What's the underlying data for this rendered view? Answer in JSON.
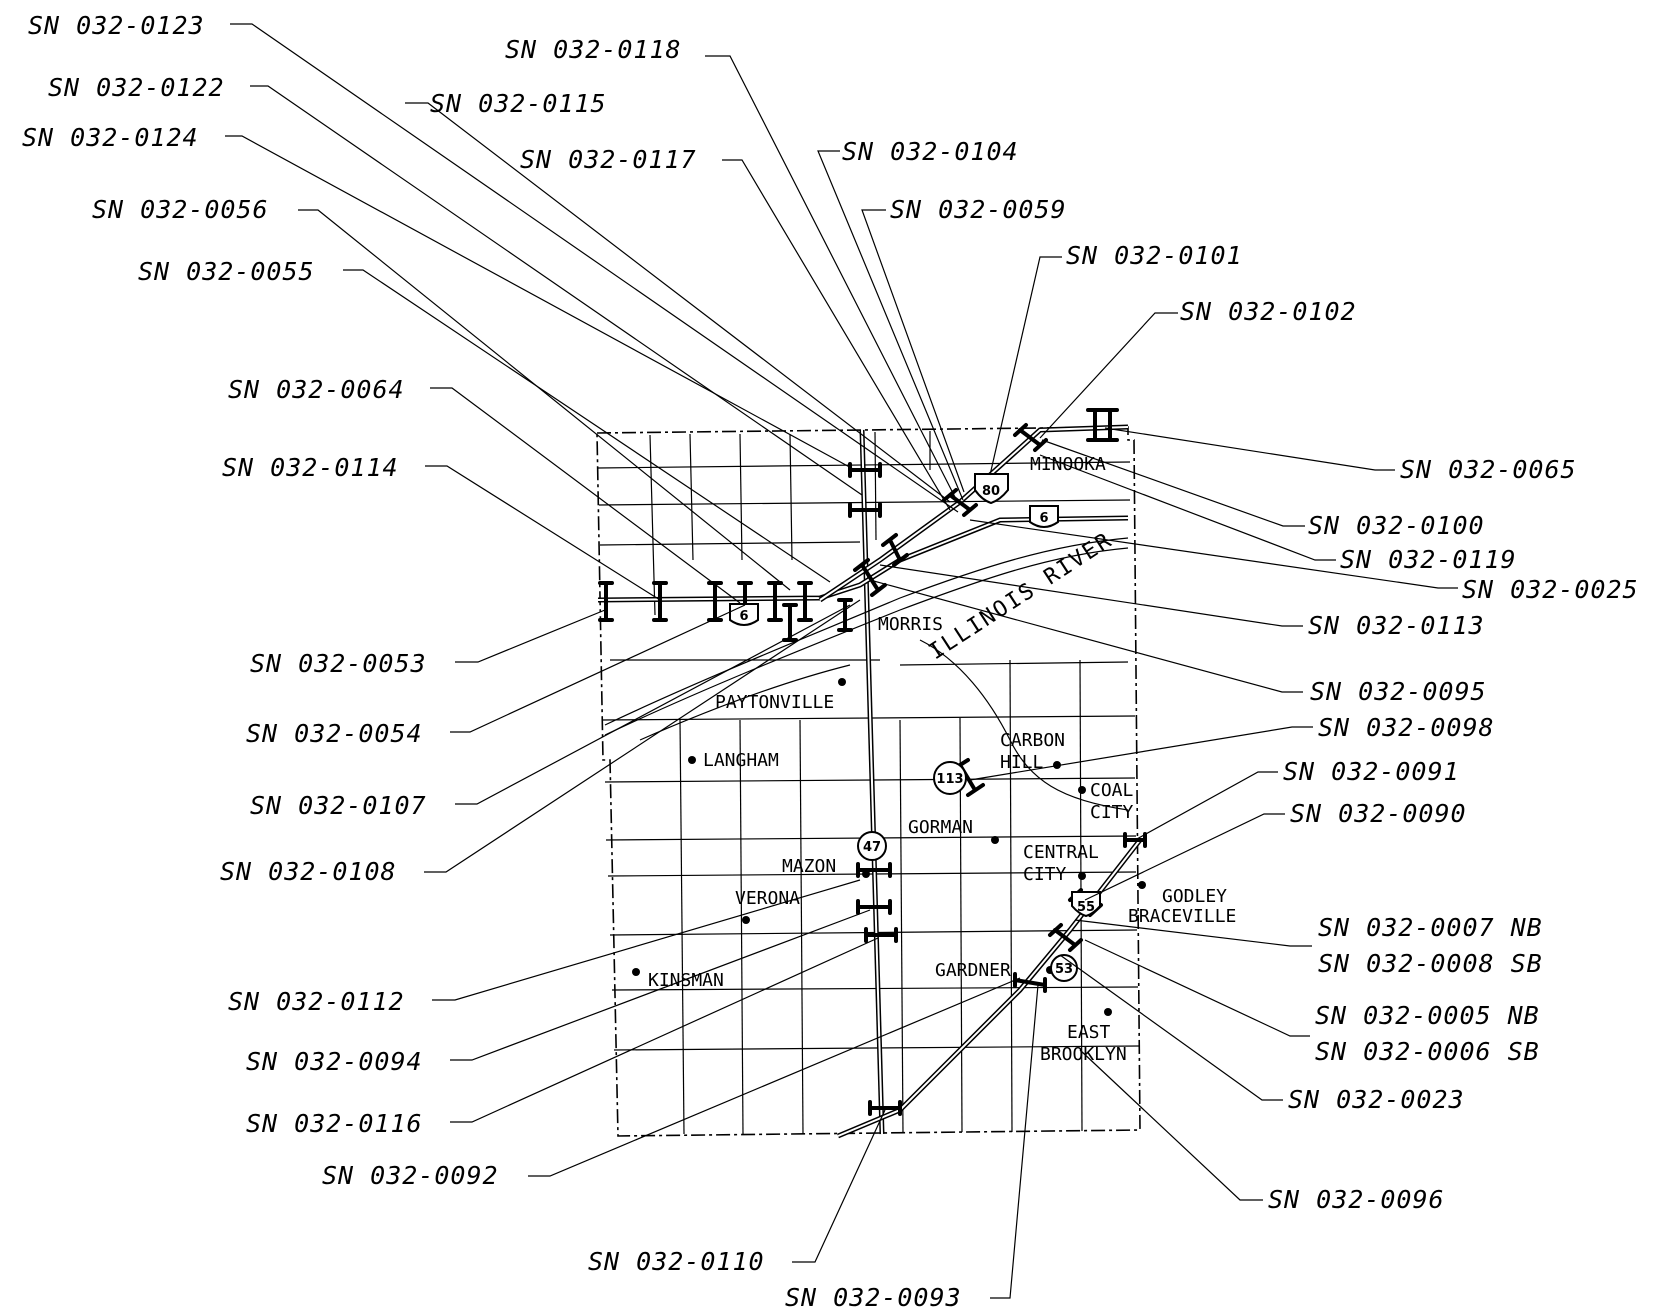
{
  "map": {
    "callouts": [
      {
        "id": "0123",
        "label": "SN 032-0123"
      },
      {
        "id": "0118",
        "label": "SN 032-0118"
      },
      {
        "id": "0122",
        "label": "SN 032-0122"
      },
      {
        "id": "0115",
        "label": "SN 032-0115"
      },
      {
        "id": "0124",
        "label": "SN 032-0124"
      },
      {
        "id": "0117",
        "label": "SN 032-0117"
      },
      {
        "id": "0104",
        "label": "SN 032-0104"
      },
      {
        "id": "0056",
        "label": "SN 032-0056"
      },
      {
        "id": "0059",
        "label": "SN 032-0059"
      },
      {
        "id": "0101",
        "label": "SN 032-0101"
      },
      {
        "id": "0055",
        "label": "SN 032-0055"
      },
      {
        "id": "0102",
        "label": "SN 032-0102"
      },
      {
        "id": "0064",
        "label": "SN 032-0064"
      },
      {
        "id": "0114",
        "label": "SN 032-0114"
      },
      {
        "id": "0065",
        "label": "SN 032-0065"
      },
      {
        "id": "0100",
        "label": "SN 032-0100"
      },
      {
        "id": "0119",
        "label": "SN 032-0119"
      },
      {
        "id": "0025",
        "label": "SN 032-0025"
      },
      {
        "id": "0113",
        "label": "SN 032-0113"
      },
      {
        "id": "0053",
        "label": "SN 032-0053"
      },
      {
        "id": "0095",
        "label": "SN 032-0095"
      },
      {
        "id": "0098",
        "label": "SN 032-0098"
      },
      {
        "id": "0054",
        "label": "SN 032-0054"
      },
      {
        "id": "0091",
        "label": "SN 032-0091"
      },
      {
        "id": "0107",
        "label": "SN 032-0107"
      },
      {
        "id": "0090",
        "label": "SN 032-0090"
      },
      {
        "id": "0108",
        "label": "SN 032-0108"
      },
      {
        "id": "0007nb",
        "label": "SN 032-0007 NB"
      },
      {
        "id": "0008sb",
        "label": "SN 032-0008 SB"
      },
      {
        "id": "0112",
        "label": "SN 032-0112"
      },
      {
        "id": "0005nb",
        "label": "SN 032-0005 NB"
      },
      {
        "id": "0006sb",
        "label": "SN 032-0006 SB"
      },
      {
        "id": "0094",
        "label": "SN 032-0094"
      },
      {
        "id": "0023",
        "label": "SN 032-0023"
      },
      {
        "id": "0116",
        "label": "SN 032-0116"
      },
      {
        "id": "0092",
        "label": "SN 032-0092"
      },
      {
        "id": "0096",
        "label": "SN 032-0096"
      },
      {
        "id": "0110",
        "label": "SN 032-0110"
      },
      {
        "id": "0093",
        "label": "SN 032-0093"
      }
    ],
    "towns": [
      {
        "id": "minooka",
        "label": "MINOOKA"
      },
      {
        "id": "morris",
        "label": "MORRIS"
      },
      {
        "id": "paytonville",
        "label": "PAYTONVILLE"
      },
      {
        "id": "langham",
        "label": "LANGHAM"
      },
      {
        "id": "carbon",
        "label": "CARBON"
      },
      {
        "id": "hill",
        "label": "HILL"
      },
      {
        "id": "coal",
        "label": "COAL"
      },
      {
        "id": "city1",
        "label": "CITY"
      },
      {
        "id": "gorman",
        "label": "GORMAN"
      },
      {
        "id": "central",
        "label": "CENTRAL"
      },
      {
        "id": "city2",
        "label": "CITY"
      },
      {
        "id": "mazon",
        "label": "MAZON"
      },
      {
        "id": "verona",
        "label": "VERONA"
      },
      {
        "id": "godley",
        "label": "GODLEY"
      },
      {
        "id": "braceville",
        "label": "BRACEVILLE"
      },
      {
        "id": "kinsman",
        "label": "KINSMAN"
      },
      {
        "id": "gardner",
        "label": "GARDNER"
      },
      {
        "id": "east",
        "label": "EAST"
      },
      {
        "id": "brooklyn",
        "label": "BROOKLYN"
      }
    ],
    "river_label": "ILLINOIS RIVER",
    "shields": [
      {
        "id": "i80",
        "label": "80"
      },
      {
        "id": "us6a",
        "label": "6"
      },
      {
        "id": "us6b",
        "label": "6"
      },
      {
        "id": "il113",
        "label": "113"
      },
      {
        "id": "il47",
        "label": "47"
      },
      {
        "id": "i55",
        "label": "55"
      },
      {
        "id": "il53",
        "label": "53"
      }
    ]
  }
}
